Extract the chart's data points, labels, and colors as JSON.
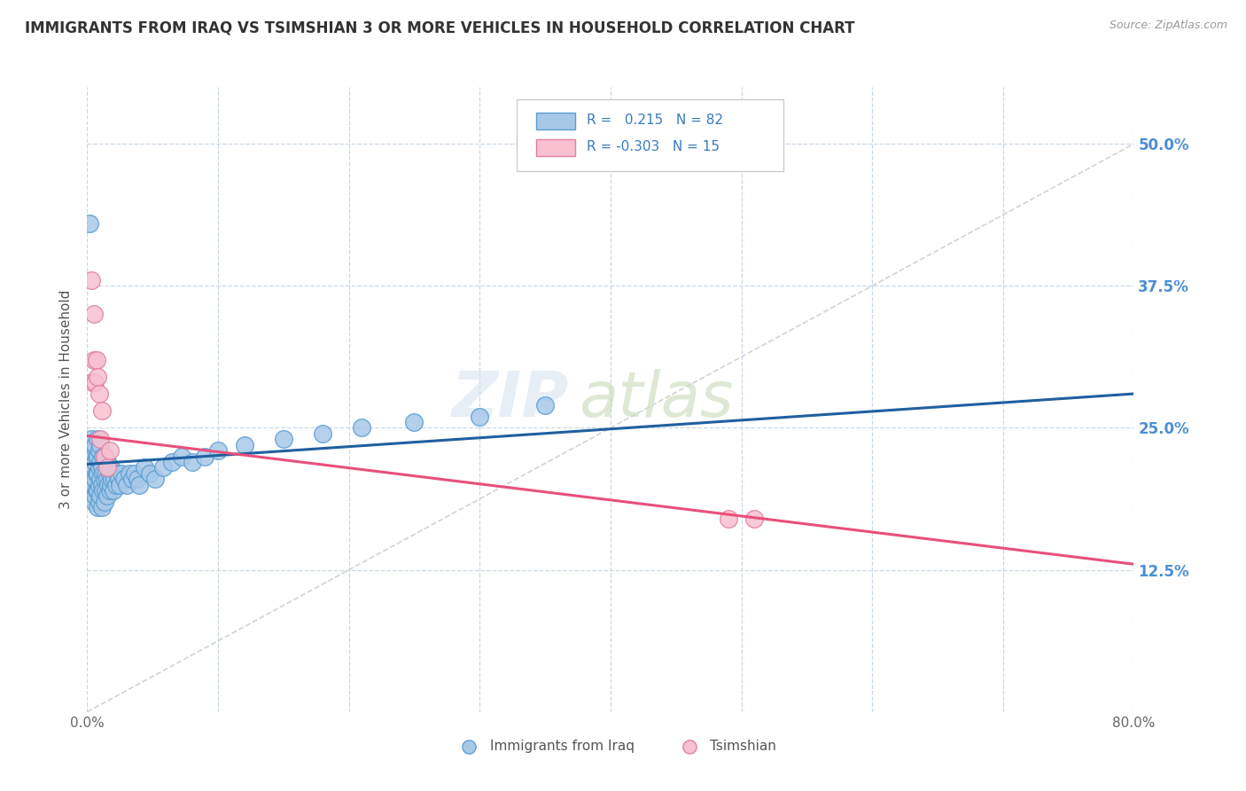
{
  "title": "IMMIGRANTS FROM IRAQ VS TSIMSHIAN 3 OR MORE VEHICLES IN HOUSEHOLD CORRELATION CHART",
  "source_text": "Source: ZipAtlas.com",
  "ylabel": "3 or more Vehicles in Household",
  "legend_label1": "Immigrants from Iraq",
  "legend_label2": "Tsimshian",
  "r1": 0.215,
  "n1": 82,
  "r2": -0.303,
  "n2": 15,
  "xlim": [
    0.0,
    0.8
  ],
  "ylim": [
    0.0,
    0.55
  ],
  "xticks": [
    0.0,
    0.1,
    0.2,
    0.3,
    0.4,
    0.5,
    0.6,
    0.7,
    0.8
  ],
  "xticklabels": [
    "0.0%",
    "",
    "",
    "",
    "",
    "",
    "",
    "",
    "80.0%"
  ],
  "yticks_right": [
    0.125,
    0.25,
    0.375,
    0.5
  ],
  "yticklabels_right": [
    "12.5%",
    "25.0%",
    "37.5%",
    "50.0%"
  ],
  "color_iraq": "#a8c8e8",
  "color_iraq_edge": "#5a9fd4",
  "color_iraq_line": "#2060a0",
  "color_tsimshian": "#f8c0d0",
  "color_tsimshian_edge": "#e080a0",
  "color_tsimshian_line": "#e8507a",
  "color_diag_line": "#c8c8c8",
  "background_color": "#ffffff",
  "grid_color": "#c8d8e8",
  "iraq_x": [
    0.002,
    0.003,
    0.003,
    0.004,
    0.004,
    0.004,
    0.005,
    0.005,
    0.005,
    0.005,
    0.006,
    0.006,
    0.006,
    0.006,
    0.007,
    0.007,
    0.007,
    0.008,
    0.008,
    0.008,
    0.008,
    0.008,
    0.009,
    0.009,
    0.009,
    0.009,
    0.01,
    0.01,
    0.01,
    0.01,
    0.011,
    0.011,
    0.011,
    0.012,
    0.012,
    0.012,
    0.013,
    0.013,
    0.014,
    0.014,
    0.014,
    0.015,
    0.015,
    0.015,
    0.016,
    0.016,
    0.017,
    0.017,
    0.018,
    0.018,
    0.019,
    0.02,
    0.02,
    0.021,
    0.022,
    0.023,
    0.024,
    0.025,
    0.026,
    0.028,
    0.03,
    0.032,
    0.034,
    0.036,
    0.038,
    0.04,
    0.044,
    0.048,
    0.052,
    0.058,
    0.065,
    0.072,
    0.08,
    0.09,
    0.1,
    0.12,
    0.15,
    0.18,
    0.21,
    0.25,
    0.3,
    0.35
  ],
  "iraq_y": [
    0.43,
    0.2,
    0.24,
    0.195,
    0.21,
    0.23,
    0.185,
    0.2,
    0.215,
    0.225,
    0.19,
    0.205,
    0.22,
    0.235,
    0.195,
    0.21,
    0.225,
    0.18,
    0.195,
    0.21,
    0.225,
    0.24,
    0.185,
    0.2,
    0.215,
    0.23,
    0.19,
    0.205,
    0.22,
    0.235,
    0.18,
    0.2,
    0.215,
    0.195,
    0.21,
    0.225,
    0.185,
    0.205,
    0.195,
    0.21,
    0.225,
    0.19,
    0.205,
    0.22,
    0.2,
    0.215,
    0.195,
    0.21,
    0.2,
    0.215,
    0.205,
    0.195,
    0.21,
    0.205,
    0.2,
    0.21,
    0.205,
    0.2,
    0.21,
    0.205,
    0.2,
    0.21,
    0.205,
    0.21,
    0.205,
    0.2,
    0.215,
    0.21,
    0.205,
    0.215,
    0.22,
    0.225,
    0.22,
    0.225,
    0.23,
    0.235,
    0.24,
    0.245,
    0.25,
    0.255,
    0.26,
    0.27
  ],
  "tsimshian_x": [
    0.003,
    0.004,
    0.005,
    0.005,
    0.006,
    0.007,
    0.008,
    0.009,
    0.01,
    0.011,
    0.013,
    0.015,
    0.017,
    0.49,
    0.51
  ],
  "tsimshian_y": [
    0.38,
    0.29,
    0.31,
    0.35,
    0.29,
    0.31,
    0.295,
    0.28,
    0.24,
    0.265,
    0.225,
    0.215,
    0.23,
    0.17,
    0.17
  ],
  "iraq_trendline_x": [
    0.0,
    0.8
  ],
  "iraq_trendline_y": [
    0.218,
    0.28
  ],
  "tsim_trendline_x": [
    0.0,
    0.8
  ],
  "tsim_trendline_y": [
    0.243,
    0.13
  ]
}
